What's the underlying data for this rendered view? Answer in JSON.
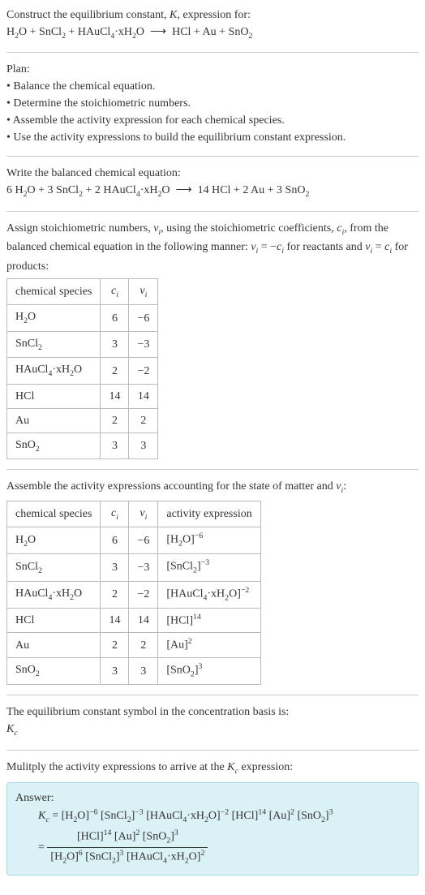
{
  "intro": {
    "line1": "Construct the equilibrium constant, <i>K</i>, expression for:",
    "equation": "H<sub>2</sub>O + SnCl<sub>2</sub> + HAuCl<sub>4</sub>·xH<sub>2</sub>O &nbsp;⟶&nbsp; HCl + Au + SnO<sub>2</sub>"
  },
  "plan": {
    "title": "Plan:",
    "items": [
      "• Balance the chemical equation.",
      "• Determine the stoichiometric numbers.",
      "• Assemble the activity expression for each chemical species.",
      "• Use the activity expressions to build the equilibrium constant expression."
    ]
  },
  "balanced": {
    "title": "Write the balanced chemical equation:",
    "equation": "6 H<sub>2</sub>O + 3 SnCl<sub>2</sub> + 2 HAuCl<sub>4</sub>·xH<sub>2</sub>O &nbsp;⟶&nbsp; 14 HCl + 2 Au + 3 SnO<sub>2</sub>"
  },
  "stoich": {
    "para": "Assign stoichiometric numbers, <i>ν<sub>i</sub></i>, using the stoichiometric coefficients, <i>c<sub>i</sub></i>, from the balanced chemical equation in the following manner: <i>ν<sub>i</sub></i> = −<i>c<sub>i</sub></i> for reactants and <i>ν<sub>i</sub></i> = <i>c<sub>i</sub></i> for products:",
    "headers": [
      "chemical species",
      "<i>c<sub>i</sub></i>",
      "<i>ν<sub>i</sub></i>"
    ],
    "rows": [
      [
        "H<sub>2</sub>O",
        "6",
        "−6"
      ],
      [
        "SnCl<sub>2</sub>",
        "3",
        "−3"
      ],
      [
        "HAuCl<sub>4</sub>·xH<sub>2</sub>O",
        "2",
        "−2"
      ],
      [
        "HCl",
        "14",
        "14"
      ],
      [
        "Au",
        "2",
        "2"
      ],
      [
        "SnO<sub>2</sub>",
        "3",
        "3"
      ]
    ]
  },
  "activity": {
    "para": "Assemble the activity expressions accounting for the state of matter and <i>ν<sub>i</sub></i>:",
    "headers": [
      "chemical species",
      "<i>c<sub>i</sub></i>",
      "<i>ν<sub>i</sub></i>",
      "activity expression"
    ],
    "rows": [
      [
        "H<sub>2</sub>O",
        "6",
        "−6",
        "[H<sub>2</sub>O]<sup>−6</sup>"
      ],
      [
        "SnCl<sub>2</sub>",
        "3",
        "−3",
        "[SnCl<sub>2</sub>]<sup>−3</sup>"
      ],
      [
        "HAuCl<sub>4</sub>·xH<sub>2</sub>O",
        "2",
        "−2",
        "[HAuCl<sub>4</sub>·xH<sub>2</sub>O]<sup>−2</sup>"
      ],
      [
        "HCl",
        "14",
        "14",
        "[HCl]<sup>14</sup>"
      ],
      [
        "Au",
        "2",
        "2",
        "[Au]<sup>2</sup>"
      ],
      [
        "SnO<sub>2</sub>",
        "3",
        "3",
        "[SnO<sub>2</sub>]<sup>3</sup>"
      ]
    ]
  },
  "symbol": {
    "line1": "The equilibrium constant symbol in the concentration basis is:",
    "line2": "<i>K<sub>c</sub></i>"
  },
  "multiply": {
    "para": "Mulitply the activity expressions to arrive at the <i>K<sub>c</sub></i> expression:"
  },
  "answer": {
    "title": "Answer:",
    "kc_eq": "<i>K<sub>c</sub></i> = [H<sub>2</sub>O]<sup>−6</sup> [SnCl<sub>2</sub>]<sup>−3</sup> [HAuCl<sub>4</sub>·xH<sub>2</sub>O]<sup>−2</sup> [HCl]<sup>14</sup> [Au]<sup>2</sup> [SnO<sub>2</sub>]<sup>3</sup>",
    "frac_num": "[HCl]<sup>14</sup> [Au]<sup>2</sup> [SnO<sub>2</sub>]<sup>3</sup>",
    "frac_den": "[H<sub>2</sub>O]<sup>6</sup> [SnCl<sub>2</sub>]<sup>3</sup> [HAuCl<sub>4</sub>·xH<sub>2</sub>O]<sup>2</sup>"
  }
}
